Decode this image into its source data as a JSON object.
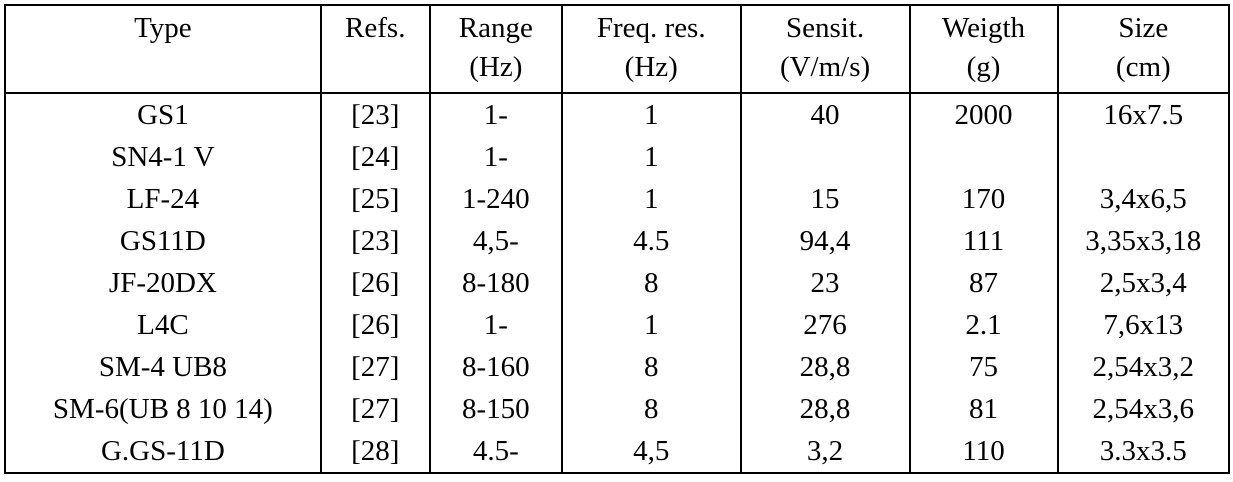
{
  "table": {
    "columns": [
      {
        "label": "Type",
        "unit": ""
      },
      {
        "label": "Refs.",
        "unit": ""
      },
      {
        "label": "Range",
        "unit": "(Hz)"
      },
      {
        "label": "Freq. res.",
        "unit": "(Hz)"
      },
      {
        "label": "Sensit.",
        "unit": "(V/m/s)"
      },
      {
        "label": "Weigth",
        "unit": "(g)"
      },
      {
        "label": "Size",
        "unit": "(cm)"
      }
    ],
    "rows": [
      {
        "cells": [
          "GS1",
          "[23]",
          "1-",
          "1",
          "40",
          "2000",
          "16x7.5"
        ]
      },
      {
        "cells": [
          "SN4-1 V",
          "[24]",
          "1-",
          "1",
          "",
          "",
          ""
        ]
      },
      {
        "cells": [
          "LF-24",
          "[25]",
          "1-240",
          "1",
          "15",
          "170",
          "3,4x6,5"
        ]
      },
      {
        "cells": [
          "GS11D",
          "[23]",
          "4,5-",
          "4.5",
          "94,4",
          "111",
          "3,35x3,18"
        ]
      },
      {
        "cells": [
          "JF-20DX",
          "[26]",
          "8-180",
          "8",
          "23",
          "87",
          "2,5x3,4"
        ]
      },
      {
        "cells": [
          "L4C",
          "[26]",
          "1-",
          "1",
          "276",
          "2.1",
          "7,6x13"
        ]
      },
      {
        "cells": [
          "SM-4 UB8",
          "[27]",
          "8-160",
          "8",
          "28,8",
          "75",
          "2,54x3,2"
        ]
      },
      {
        "cells": [
          "SM-6(UB 8 10 14)",
          "[27]",
          "8-150",
          "8",
          "28,8",
          "81",
          "2,54x3,6"
        ]
      },
      {
        "cells": [
          "G.GS-11D",
          "[28]",
          "4.5-",
          "4,5",
          "3,2",
          "110",
          "3.3x3.5"
        ]
      }
    ],
    "colors": {
      "border": "#000000",
      "text": "#000000",
      "background": "#ffffff"
    }
  },
  "chart_data": {
    "type": "table",
    "title": "",
    "columns": [
      "Type",
      "Refs.",
      "Range (Hz)",
      "Freq. res. (Hz)",
      "Sensit. (V/m/s)",
      "Weigth (g)",
      "Size (cm)"
    ],
    "rows": [
      [
        "GS1",
        "[23]",
        "1-",
        "1",
        "40",
        "2000",
        "16x7.5"
      ],
      [
        "SN4-1 V",
        "[24]",
        "1-",
        "1",
        "",
        "",
        ""
      ],
      [
        "LF-24",
        "[25]",
        "1-240",
        "1",
        "15",
        "170",
        "3,4x6,5"
      ],
      [
        "GS11D",
        "[23]",
        "4,5-",
        "4.5",
        "94,4",
        "111",
        "3,35x3,18"
      ],
      [
        "JF-20DX",
        "[26]",
        "8-180",
        "8",
        "23",
        "87",
        "2,5x3,4"
      ],
      [
        "L4C",
        "[26]",
        "1-",
        "1",
        "276",
        "2.1",
        "7,6x13"
      ],
      [
        "SM-4 UB8",
        "[27]",
        "8-160",
        "8",
        "28,8",
        "75",
        "2,54x3,2"
      ],
      [
        "SM-6(UB 8 10 14)",
        "[27]",
        "8-150",
        "8",
        "28,8",
        "81",
        "2,54x3,6"
      ],
      [
        "G.GS-11D",
        "[28]",
        "4.5-",
        "4,5",
        "3,2",
        "110",
        "3.3x3.5"
      ]
    ]
  }
}
